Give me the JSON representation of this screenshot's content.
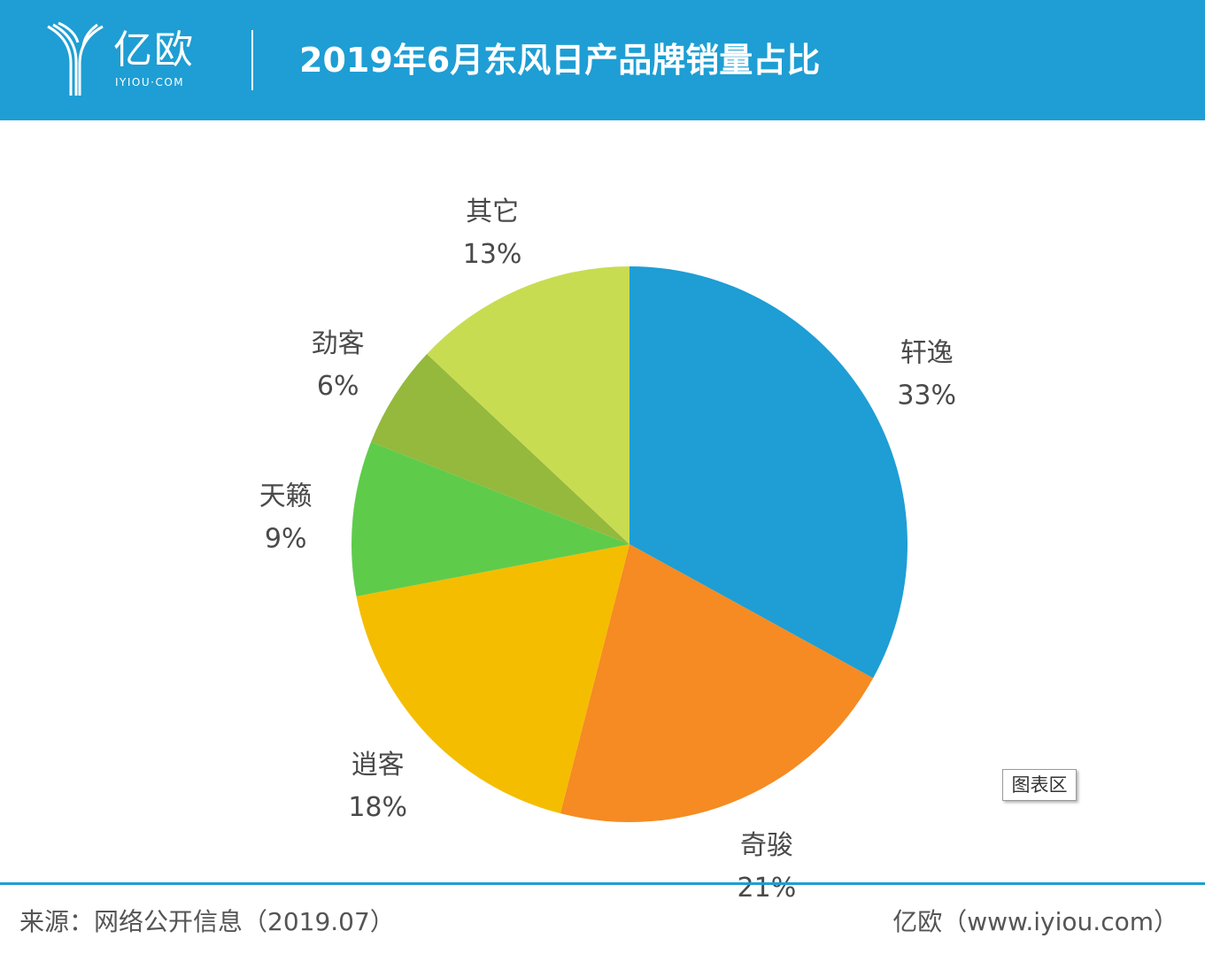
{
  "header": {
    "logo_text": "亿欧",
    "logo_sub": "IYIOU·COM",
    "title": "2019年6月东风日产品牌销量占比"
  },
  "chart_data": {
    "type": "pie",
    "title": "2019年6月东风日产品牌销量占比",
    "slices": [
      {
        "label": "轩逸",
        "value": 33,
        "display": "33%",
        "color": "#1e9ed4"
      },
      {
        "label": "奇骏",
        "value": 21,
        "display": "21%",
        "color": "#f58b22"
      },
      {
        "label": "逍客",
        "value": 18,
        "display": "18%",
        "color": "#f4bd00"
      },
      {
        "label": "天籁",
        "value": 9,
        "display": "9%",
        "color": "#5fcb4b"
      },
      {
        "label": "劲客",
        "value": 6,
        "display": "6%",
        "color": "#94b93c"
      },
      {
        "label": "其它",
        "value": 13,
        "display": "13%",
        "color": "#c8dc52"
      }
    ],
    "legend_button": "图表区"
  },
  "footer": {
    "source": "来源：网络公开信息（2019.07）",
    "site": "亿欧（www.iyiou.com）"
  }
}
